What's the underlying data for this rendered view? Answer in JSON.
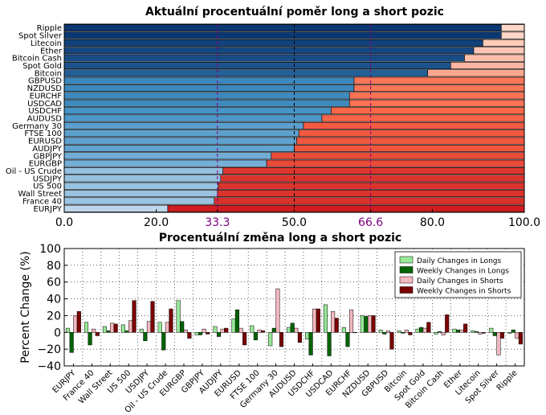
{
  "chart_data": [
    {
      "type": "bar",
      "orientation": "horizontal-stacked",
      "title": "Aktuální procentuální poměr long a short pozic",
      "categories": [
        "Ripple",
        "Spot Silver",
        "Litecoin",
        "Ether",
        "Bitcoin Cash",
        "Spot Gold",
        "Bitcoin",
        "GBPUSD",
        "NZDUSD",
        "EURCHF",
        "USDCAD",
        "USDCHF",
        "AUDUSD",
        "Germany 30",
        "FTSE 100",
        "EURUSD",
        "AUDJPY",
        "GBPJPY",
        "EURGBP",
        "Oil - US Crude",
        "USDJPY",
        "US 500",
        "Wall Street",
        "France 40",
        "EURJPY"
      ],
      "long_pct": [
        95,
        95,
        91,
        89,
        87,
        84,
        79,
        63,
        63,
        62,
        62,
        58,
        56,
        52,
        51,
        50.5,
        50,
        45,
        44,
        34.5,
        34,
        33.5,
        33.3,
        32.6,
        22.5
      ],
      "xlim": [
        0,
        100
      ],
      "xticks": [
        "0.0",
        "20.0",
        "33.3",
        "50.0",
        "66.6",
        "80.0",
        "100.0"
      ],
      "xtick_values": [
        0,
        20,
        33.3,
        50,
        66.6,
        80,
        100
      ],
      "highlight_ticks": [
        "33.3",
        "66.6"
      ],
      "reference_lines": [
        33.3,
        50,
        66.6
      ],
      "colors": {
        "long_strong": "#08306b",
        "long_mid": "#4292c6",
        "long_light": "#c6dbef",
        "short_light": "#fee0d2",
        "short_mid": "#fb6a4a",
        "short_strong": "#cb181d",
        "highlight_tick": "#800080"
      }
    },
    {
      "type": "bar",
      "title": "Procentuální změna long a short pozic",
      "ylabel": "Percent Change (%)",
      "ylim": [
        -40,
        100
      ],
      "yticks": [
        "100",
        "80",
        "60",
        "40",
        "20",
        "0",
        "−20",
        "−40"
      ],
      "ytick_values": [
        100,
        80,
        60,
        40,
        20,
        0,
        -20,
        -40
      ],
      "categories": [
        "EURJPY",
        "France 40",
        "Wall Street",
        "US 500",
        "USDJPY",
        "Oil - US Crude",
        "EURGBP",
        "GBPJPY",
        "AUDJPY",
        "EURUSD",
        "FTSE 100",
        "Germany 30",
        "AUDUSD",
        "USDCHF",
        "USDCAD",
        "EURCHF",
        "NZDUSD",
        "GBPUSD",
        "Bitcoin",
        "Spot Gold",
        "Bitcoin Cash",
        "Ether",
        "Litecoin",
        "Spot Silver",
        "Ripple"
      ],
      "series": [
        {
          "name": "Daily Changes in Longs",
          "color": "#98e898",
          "values": [
            5,
            12,
            7,
            9,
            4,
            12,
            38,
            -3,
            7,
            16,
            8,
            -16,
            6,
            -8,
            33,
            6,
            20,
            3,
            2,
            4,
            -2,
            4,
            2,
            5,
            -1
          ]
        },
        {
          "name": "Weekly Changes in Longs",
          "color": "#006400",
          "values": [
            -24,
            -15,
            2,
            2,
            -10,
            -21,
            13,
            -3,
            -5,
            27,
            -9,
            5,
            11,
            -27,
            -28,
            -17,
            19,
            -2,
            -1,
            6,
            1,
            3,
            1,
            -4,
            3
          ]
        },
        {
          "name": "Daily Changes in Shorts",
          "color": "#f4b8c0",
          "values": [
            20,
            4,
            11,
            14,
            13,
            12,
            3,
            4,
            4,
            5,
            3,
            52,
            5,
            28,
            25,
            27,
            20,
            2,
            3,
            5,
            -3,
            3,
            -2,
            -27,
            -7
          ]
        },
        {
          "name": "Weekly Changes in Shorts",
          "color": "#7a0000",
          "values": [
            25,
            -4,
            10,
            38,
            37,
            28,
            -7,
            -2,
            5,
            -15,
            2,
            -17,
            -12,
            28,
            17,
            0,
            20,
            -20,
            -3,
            12,
            21,
            10,
            -1,
            -7,
            -14
          ]
        }
      ],
      "legend_position": "upper right"
    }
  ]
}
